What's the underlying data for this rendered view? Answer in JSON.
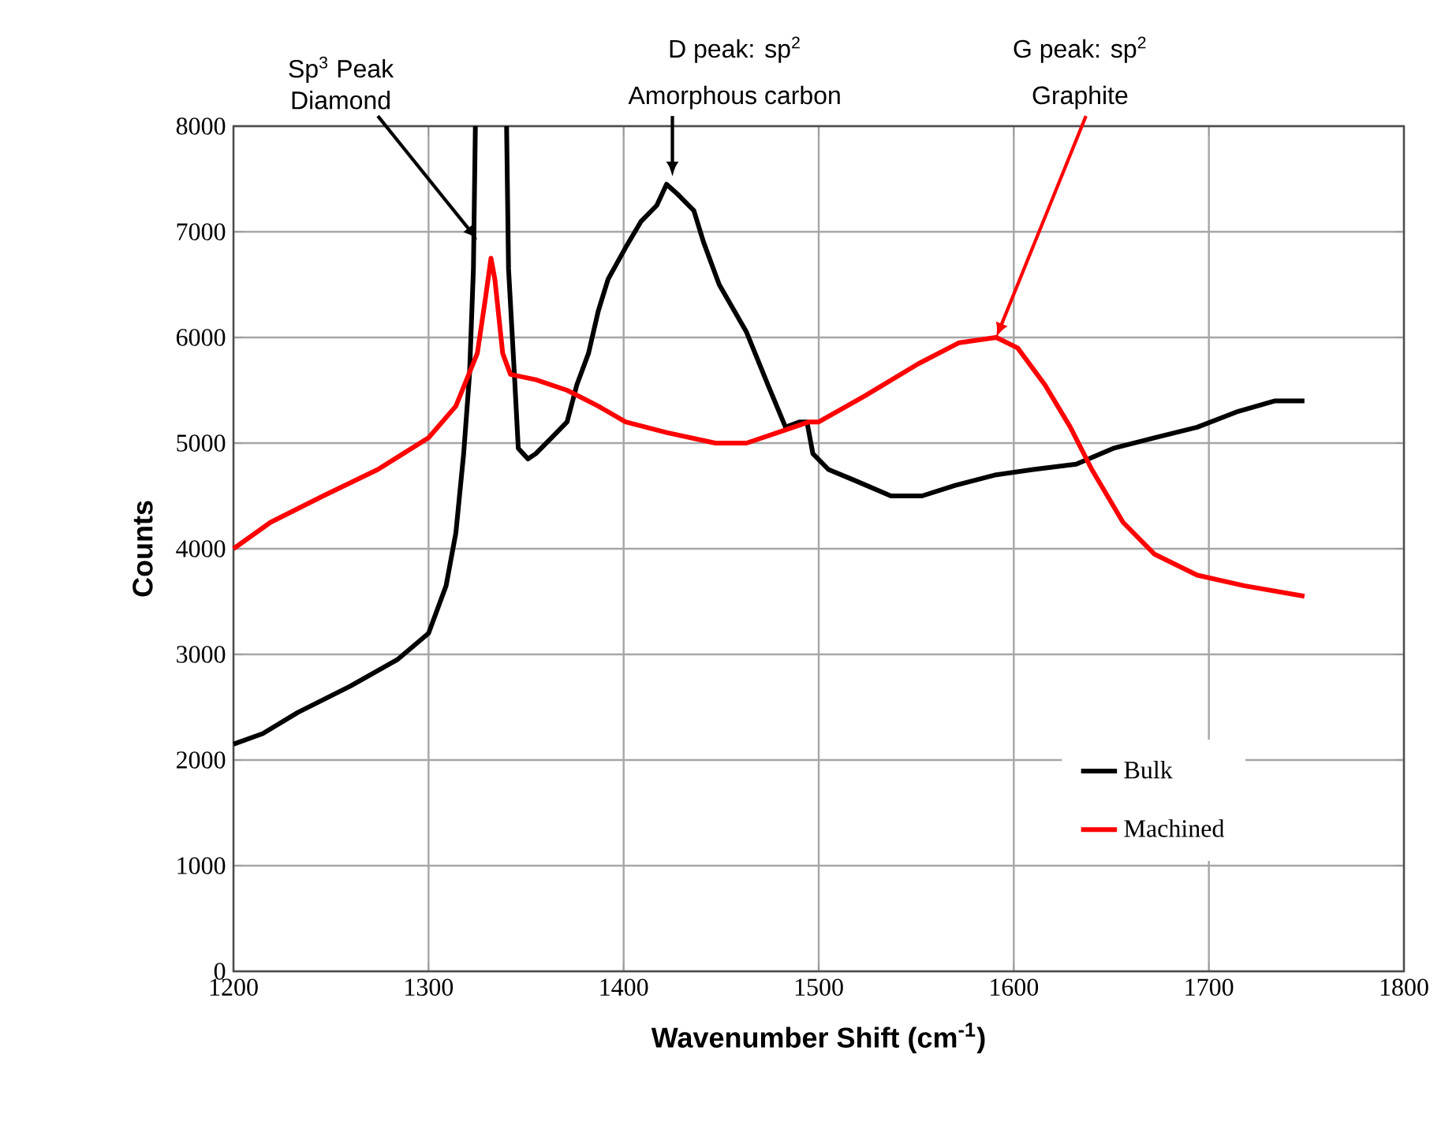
{
  "chart_data": {
    "type": "line",
    "xlabel": "Wavenumber Shift (cm$^{-1}$)",
    "ylabel": "Counts",
    "xlim": [
      1200,
      1800
    ],
    "xticks": [
      1200,
      1300,
      1400,
      1500,
      1600,
      1700,
      1800
    ],
    "ylim": [
      0,
      8000
    ],
    "yticks": [
      0,
      1000,
      2000,
      3000,
      4000,
      5000,
      6000,
      7000,
      8000
    ],
    "grid": true,
    "legend": "bottom right",
    "marker": "none",
    "line_style": "solid",
    "annotations": [
      {
        "text": "Sp$^{3}$ Peak Diamond",
        "x": 1325,
        "y": 6925
      },
      "D peak: sp$^{2}$",
      {
        "text": "Amorphous carbon",
        "x": 1425,
        "y": 7525
      },
      "G peak: sp$^{2}$",
      {
        "text": "Graphite",
        "x": 1591,
        "y": 6000
      }
    ],
    "series": [
      {
        "name": "Bulk",
        "color": "#000000",
        "x": [
          1200,
          1215,
          1233,
          1260,
          1284,
          1300,
          1309,
          1314,
          1318,
          1321,
          1323,
          1324,
          1332,
          1340,
          1341,
          1344,
          1346,
          1351,
          1355,
          1363,
          1371,
          1376,
          1382,
          1387,
          1392,
          1401,
          1409,
          1417,
          1422,
          1428,
          1436,
          1441,
          1449,
          1463,
          1474,
          1483,
          1490,
          1494,
          1497,
          1505,
          1518,
          1537,
          1553,
          1570,
          1591,
          1610,
          1632,
          1651,
          1672,
          1694,
          1715,
          1734,
          1749
        ],
        "values": [
          2150,
          2250,
          2450,
          2700,
          2950,
          3200,
          3650,
          4150,
          4900,
          5650,
          6650,
          8000,
          null,
          8000,
          6650,
          5650,
          4950,
          4850,
          4900,
          5050,
          5200,
          5550,
          5850,
          6250,
          6550,
          6850,
          7100,
          7250,
          7450,
          7350,
          7200,
          6900,
          6500,
          6050,
          5550,
          5150,
          5200,
          5200,
          4900,
          4750,
          4650,
          4500,
          4500,
          4600,
          4700,
          4750,
          4800,
          4950,
          5050,
          5150,
          5300,
          5400,
          5400
        ]
      },
      {
        "name": "Machined",
        "color": "#ff0000",
        "x": [
          1200,
          1219,
          1246,
          1274,
          1300,
          1314,
          1325,
          1329,
          1332,
          1334,
          1338,
          1342,
          1355,
          1371,
          1387,
          1401,
          1422,
          1447,
          1463,
          1479,
          1495,
          1500,
          1524,
          1551,
          1572,
          1591,
          1602,
          1616,
          1629,
          1640,
          1656,
          1672,
          1694,
          1718,
          1749
        ],
        "values": [
          4000,
          4250,
          4500,
          4750,
          5050,
          5350,
          5850,
          6350,
          6750,
          6550,
          5850,
          5650,
          5600,
          5500,
          5350,
          5200,
          5100,
          5000,
          5000,
          5100,
          5200,
          5200,
          5450,
          5750,
          5950,
          6000,
          5900,
          5550,
          5150,
          4750,
          4250,
          3950,
          3750,
          3650,
          3550
        ]
      }
    ]
  }
}
